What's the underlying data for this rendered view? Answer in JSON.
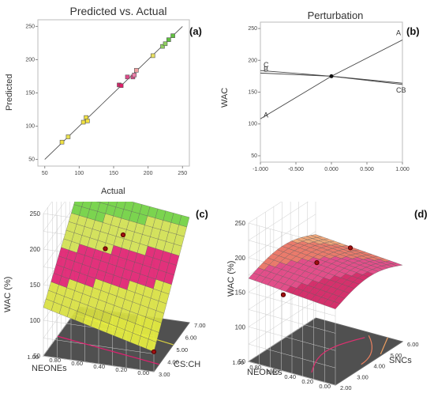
{
  "chart_data": [
    {
      "id": "a",
      "type": "scatter",
      "title": "Predicted vs. Actual",
      "panel_label": "(a)",
      "xlabel": "Actual",
      "ylabel": "Predicted",
      "xlim": [
        40,
        260
      ],
      "ylim": [
        40,
        260
      ],
      "xticks": [
        50,
        100,
        150,
        200,
        250
      ],
      "yticks": [
        50,
        100,
        150,
        200,
        250
      ],
      "grid": false,
      "reference_line": [
        [
          50,
          50
        ],
        [
          250,
          250
        ]
      ],
      "points": [
        {
          "x": 75,
          "y": 76,
          "color": "#f0e040"
        },
        {
          "x": 84,
          "y": 84,
          "color": "#e8e050"
        },
        {
          "x": 106,
          "y": 106,
          "color": "#f0e040"
        },
        {
          "x": 110,
          "y": 113,
          "color": "#f0e040"
        },
        {
          "x": 112,
          "y": 108,
          "color": "#f0e040"
        },
        {
          "x": 158,
          "y": 162,
          "color": "#e0206a"
        },
        {
          "x": 161,
          "y": 161,
          "color": "#e0206a"
        },
        {
          "x": 170,
          "y": 174,
          "color": "#e04a8a"
        },
        {
          "x": 178,
          "y": 174,
          "color": "#e04a8a"
        },
        {
          "x": 180,
          "y": 177,
          "color": "#e880a8"
        },
        {
          "x": 183,
          "y": 184,
          "color": "#f0a0a0"
        },
        {
          "x": 207,
          "y": 206,
          "color": "#e8e060"
        },
        {
          "x": 221,
          "y": 220,
          "color": "#90d060"
        },
        {
          "x": 225,
          "y": 224,
          "color": "#90d060"
        },
        {
          "x": 230,
          "y": 230,
          "color": "#60c040"
        },
        {
          "x": 236,
          "y": 236,
          "color": "#60c040"
        }
      ]
    },
    {
      "id": "b",
      "type": "line",
      "title": "Perturbation",
      "panel_label": "(b)",
      "xlabel": "",
      "ylabel": "WAC",
      "xlim": [
        -1,
        1
      ],
      "ylim": [
        40,
        260
      ],
      "xticks": [
        "-1.000",
        "-0.500",
        "0.000",
        "0.500",
        "1.000"
      ],
      "yticks": [
        50,
        100,
        150,
        200,
        250
      ],
      "grid": false,
      "center_point": {
        "x": 0,
        "y": 175
      },
      "series": [
        {
          "name": "A",
          "x": [
            -1,
            0,
            1
          ],
          "y": [
            108,
            175,
            232
          ]
        },
        {
          "name": "B",
          "x": [
            -1,
            0,
            1
          ],
          "y": [
            180,
            175,
            164
          ]
        },
        {
          "name": "C",
          "x": [
            -1,
            0,
            1
          ],
          "y": [
            184,
            175,
            162
          ]
        }
      ],
      "end_labels": [
        {
          "text": "A",
          "at": "start",
          "series": "A"
        },
        {
          "text": "A",
          "at": "end",
          "series": "A"
        },
        {
          "text": "C",
          "at": "start",
          "series": "C"
        },
        {
          "text": "B",
          "at": "start",
          "series": "B"
        },
        {
          "text": "CB",
          "at": "end",
          "series": "B"
        }
      ]
    },
    {
      "id": "c",
      "type": "surface",
      "panel_label": "(c)",
      "zlabel": "WAC (%)",
      "xlabel": "CS:CH",
      "ylabel": "NEONEs",
      "zticks": [
        "50",
        "100",
        "150",
        "200",
        "250"
      ],
      "xticks": [
        "3.00",
        "4.00",
        "5.00",
        "6.00",
        "7.00"
      ],
      "yticks": [
        "0.00",
        "0.20",
        "0.40",
        "0.60",
        "0.80",
        "1.00"
      ],
      "zlim": [
        50,
        250
      ],
      "surface_colors": [
        "#e8f040",
        "#d8e040",
        "#e02070",
        "#d0e050",
        "#70d040"
      ],
      "design_points": [
        {
          "x": 3,
          "y": 0.0,
          "z": 78
        },
        {
          "x": 5,
          "y": 0.6,
          "z": 175
        },
        {
          "x": 7,
          "y": 0.6,
          "z": 160
        }
      ],
      "contour_colors": [
        "#e02070",
        "#d8d040"
      ]
    },
    {
      "id": "d",
      "type": "surface",
      "panel_label": "(d)",
      "zlabel": "WAC (%)",
      "xlabel": "SNCs",
      "ylabel": "NEONEs",
      "zticks": [
        "50",
        "100",
        "150",
        "200",
        "250"
      ],
      "xticks": [
        "2.00",
        "3.00",
        "4.00",
        "5.00",
        "6.00"
      ],
      "yticks": [
        "0.00",
        "0.20",
        "0.40",
        "0.60",
        "0.80",
        "1.00"
      ],
      "zlim": [
        50,
        250
      ],
      "surface_colors": [
        "#d02060",
        "#e04080",
        "#e87060",
        "#f0a070"
      ],
      "design_points": [
        {
          "x": 2,
          "y": 0.6,
          "z": 160
        },
        {
          "x": 4,
          "y": 0.6,
          "z": 175
        },
        {
          "x": 6,
          "y": 0.6,
          "z": 165
        }
      ],
      "contour_colors": [
        "#e03070",
        "#e88060",
        "#f0a060"
      ]
    }
  ]
}
